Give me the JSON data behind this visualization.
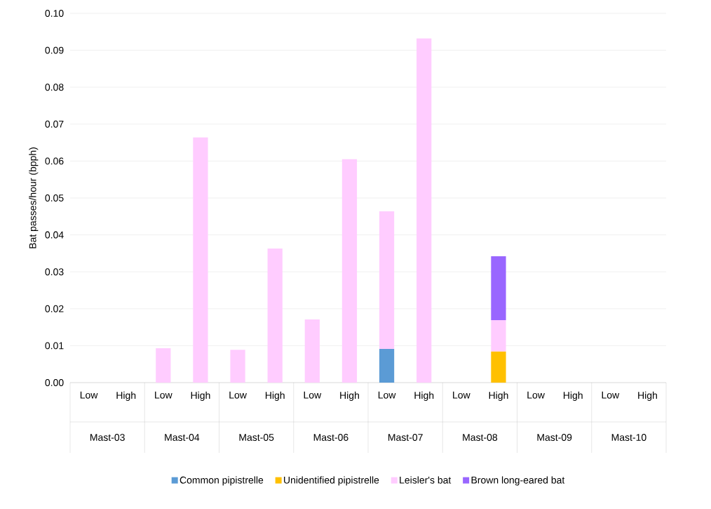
{
  "chart_data": {
    "type": "bar",
    "stacked": true,
    "ylabel": "Bat passes/hour (bpph)",
    "categories": [
      "Low",
      "High",
      "Low",
      "High",
      "Low",
      "High",
      "Low",
      "High",
      "Low",
      "High",
      "Low",
      "High",
      "Low",
      "High",
      "Low",
      "High"
    ],
    "annotations": [
      "Mast-03",
      "Mast-04",
      "Mast-05",
      "Mast-06",
      "Mast-07",
      "Mast-08",
      "Mast-09",
      "Mast-10"
    ],
    "series": [
      {
        "name": "Common pipistrelle",
        "color": "#5b9bd5",
        "values": [
          null,
          null,
          null,
          null,
          null,
          null,
          null,
          null,
          0.0091,
          null,
          null,
          null,
          null,
          null,
          null,
          null
        ]
      },
      {
        "name": "Unidentified pipistrelle",
        "color": "#ffc000",
        "values": [
          null,
          null,
          null,
          null,
          null,
          null,
          null,
          null,
          null,
          null,
          null,
          0.0084,
          null,
          null,
          null,
          null
        ]
      },
      {
        "name": "Leisler's bat",
        "color": "#ffccff",
        "values": [
          null,
          null,
          0.0093,
          0.0664,
          0.0089,
          0.0363,
          0.0171,
          0.0605,
          0.0373,
          0.0932,
          null,
          0.0085,
          null,
          null,
          null,
          null
        ]
      },
      {
        "name": "Brown long-eared bat",
        "color": "#9966ff",
        "values": [
          null,
          null,
          null,
          null,
          null,
          null,
          null,
          null,
          null,
          null,
          null,
          0.0173,
          null,
          null,
          null,
          null
        ]
      }
    ],
    "ylim": [
      0,
      0.1
    ],
    "yticks": [
      {
        "value": 0,
        "label": "0.00"
      },
      {
        "value": 0.01,
        "label": "0.01"
      },
      {
        "value": 0.02,
        "label": "0.02"
      },
      {
        "value": 0.03,
        "label": "0.03"
      },
      {
        "value": 0.04,
        "label": "0.04"
      },
      {
        "value": 0.05,
        "label": "0.05"
      },
      {
        "value": 0.06,
        "label": "0.06"
      },
      {
        "value": 0.07,
        "label": "0.07"
      },
      {
        "value": 0.08,
        "label": "0.08"
      },
      {
        "value": 0.09,
        "label": "0.09"
      },
      {
        "value": 0.1,
        "label": "0.10"
      }
    ],
    "grid": "y",
    "legend": "bottom"
  }
}
